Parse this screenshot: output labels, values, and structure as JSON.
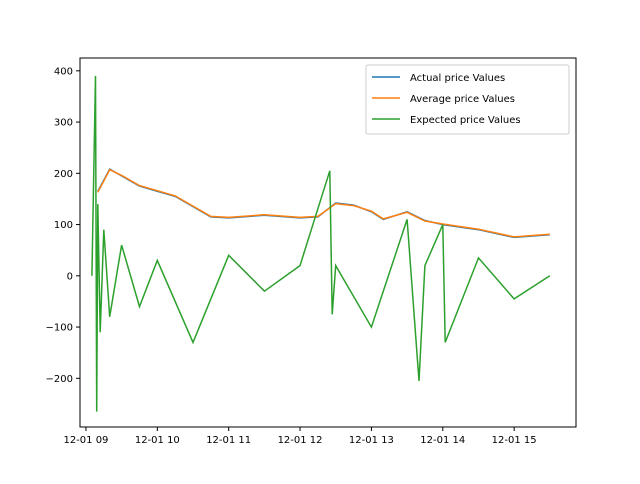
{
  "chart_data": {
    "type": "line",
    "title": "",
    "xlabel": "",
    "ylabel": "",
    "x_ticks": [
      {
        "value": 9.0,
        "label": "12-01 09"
      },
      {
        "value": 10.0,
        "label": "12-01 10"
      },
      {
        "value": 11.0,
        "label": "12-01 11"
      },
      {
        "value": 12.0,
        "label": "12-01 12"
      },
      {
        "value": 13.0,
        "label": "12-01 13"
      },
      {
        "value": 14.0,
        "label": "12-01 14"
      },
      {
        "value": 15.0,
        "label": "12-01 15"
      }
    ],
    "y_ticks": [
      -200,
      -100,
      0,
      100,
      200,
      300,
      400
    ],
    "xlim": [
      "12-01 08:55",
      "12-01 15:52"
    ],
    "ylim": [
      -295,
      425
    ],
    "grid": false,
    "legend_position": "top-right",
    "series": [
      {
        "name": "Actual price Values",
        "color": "#1f77b4",
        "x": [
          "12-01 09:10",
          "12-01 09:20",
          "12-01 09:30",
          "12-01 09:45",
          "12-01 10:00",
          "12-01 10:15",
          "12-01 10:30",
          "12-01 10:45",
          "12-01 11:00",
          "12-01 11:30",
          "12-01 12:00",
          "12-01 12:15",
          "12-01 12:30",
          "12-01 12:45",
          "12-01 13:00",
          "12-01 13:10",
          "12-01 13:30",
          "12-01 13:45",
          "12-01 14:00",
          "12-01 14:30",
          "12-01 15:00",
          "12-01 15:30"
        ],
        "values": [
          165,
          208,
          195,
          175,
          165,
          155,
          135,
          115,
          113,
          118,
          113,
          115,
          142,
          138,
          125,
          110,
          125,
          108,
          100,
          90,
          75,
          80
        ]
      },
      {
        "name": "Average price Values",
        "color": "#ff7f0e",
        "x": [
          "12-01 09:10",
          "12-01 09:20",
          "12-01 09:30",
          "12-01 09:45",
          "12-01 10:00",
          "12-01 10:15",
          "12-01 10:30",
          "12-01 10:45",
          "12-01 11:00",
          "12-01 11:30",
          "12-01 12:00",
          "12-01 12:15",
          "12-01 12:30",
          "12-01 12:45",
          "12-01 13:00",
          "12-01 13:10",
          "12-01 13:30",
          "12-01 13:45",
          "12-01 14:00",
          "12-01 14:30",
          "12-01 15:00",
          "12-01 15:30"
        ],
        "values": [
          163,
          207,
          196,
          176,
          166,
          156,
          136,
          116,
          114,
          119,
          114,
          116,
          141,
          137,
          126,
          111,
          124,
          107,
          101,
          91,
          76,
          81
        ]
      },
      {
        "name": "Expected price Values",
        "color": "#2ca02c",
        "x": [
          "12-01 09:05",
          "12-01 09:08",
          "12-01 09:09",
          "12-01 09:10",
          "12-01 09:12",
          "12-01 09:15",
          "12-01 09:20",
          "12-01 09:30",
          "12-01 09:45",
          "12-01 10:00",
          "12-01 10:30",
          "12-01 11:00",
          "12-01 11:30",
          "12-01 12:00",
          "12-01 12:25",
          "12-01 12:27",
          "12-01 12:30",
          "12-01 13:00",
          "12-01 13:30",
          "12-01 13:40",
          "12-01 13:45",
          "12-01 14:00",
          "12-01 14:02",
          "12-01 14:30",
          "12-01 15:00",
          "12-01 15:30"
        ],
        "values": [
          0,
          390,
          -265,
          140,
          -110,
          90,
          -80,
          60,
          -60,
          30,
          -130,
          40,
          -30,
          20,
          205,
          -75,
          20,
          -100,
          110,
          -205,
          20,
          100,
          -130,
          35,
          -45,
          0
        ]
      }
    ]
  }
}
